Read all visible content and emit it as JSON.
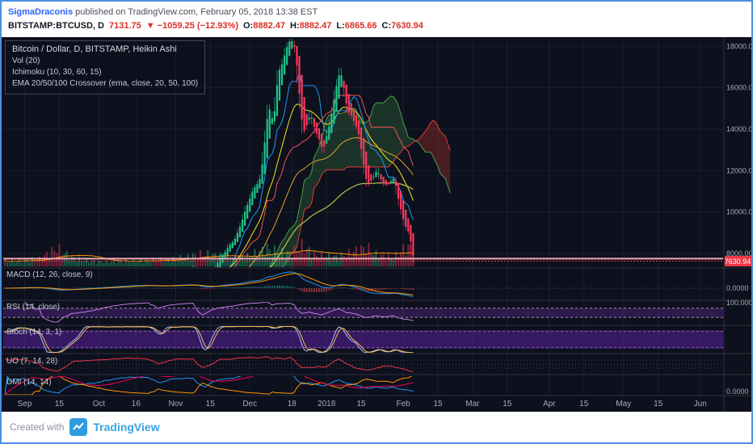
{
  "header": {
    "author": "SigmaDraconis",
    "published": " published on TradingView.com, February 05, 2018 13:38 EST",
    "symbol": "BITSTAMP:BTCUSD, D",
    "price": "7131.75",
    "change": "▼ −1059.25 (−12.93%)",
    "o_label": "O:",
    "o": "8882.47",
    "h_label": "H:",
    "h": "8882.47",
    "l_label": "L:",
    "l": "6865.66",
    "c_label": "C:",
    "c": "7630.94"
  },
  "legend": {
    "title": "Bitcoin / Dollar, D, BITSTAMP, Heikin Ashi",
    "vol": "Vol (20)",
    "ichimoku": "Ichimoku (10, 30, 60, 15)",
    "ema": "EMA 20/50/100 Crossover (ema, close, 20, 50, 100)"
  },
  "panes": {
    "macd": "MACD (12, 26, close, 9)",
    "rsi": "RSI (14, close)",
    "stoch": "Stoch (14, 3, 1)",
    "uo": "UO (7, 14, 28)",
    "dmi": "DMI (14, 14)"
  },
  "axis": {
    "price_labels": [
      {
        "price": 18000,
        "text": "18000.00"
      },
      {
        "price": 16000,
        "text": "16000.00"
      },
      {
        "price": 14000,
        "text": "14000.00"
      },
      {
        "price": 12000,
        "text": "12000.00"
      },
      {
        "price": 10000,
        "text": "10000.00"
      },
      {
        "price": 8000,
        "text": "8000.00"
      }
    ],
    "last_price_badge": "7630.94",
    "macd_zero_label": "0.0000",
    "rsi_top_label": "100.0000",
    "dmi_bottom_label": "0.0000",
    "time_labels": [
      [
        8,
        "Sep"
      ],
      [
        22,
        "15"
      ],
      [
        38,
        "Oct"
      ],
      [
        53,
        "16"
      ],
      [
        69,
        "Nov"
      ],
      [
        83,
        "15"
      ],
      [
        99,
        "Dec"
      ],
      [
        116,
        "18"
      ],
      [
        130,
        "2018"
      ],
      [
        144,
        "15"
      ],
      [
        161,
        "Feb"
      ],
      [
        175,
        "15"
      ],
      [
        189,
        "Mar"
      ],
      [
        203,
        "15"
      ],
      [
        220,
        "Apr"
      ],
      [
        234,
        "15"
      ],
      [
        250,
        "May"
      ],
      [
        264,
        "15"
      ],
      [
        281,
        "Jun"
      ]
    ]
  },
  "footer": {
    "created_with": "Created with",
    "brand": "TradingView"
  },
  "chart_data": {
    "type": "candlestick",
    "style": "Heikin Ashi",
    "symbol": "BITSTAMP:BTCUSD",
    "interval": "D",
    "visible_price_range": [
      7340,
      18390
    ],
    "x_range": [
      "2017-08-24",
      "2018-06-01"
    ],
    "grid": true,
    "indicators": [
      "Vol (20)",
      "Ichimoku (10, 30, 60, 15)",
      "EMA 20/50/100 Crossover",
      "MACD (12,26,close,9)",
      "RSI (14,close)",
      "Stoch (14,3,1)",
      "UO (7,14,28)",
      "DMI (14,14)"
    ],
    "close_anchors": [
      [
        0,
        4350
      ],
      [
        8,
        4750
      ],
      [
        14,
        4600
      ],
      [
        21,
        3200
      ],
      [
        27,
        3900
      ],
      [
        38,
        4350
      ],
      [
        49,
        5400
      ],
      [
        58,
        6050
      ],
      [
        62,
        5750
      ],
      [
        69,
        6750
      ],
      [
        76,
        7400
      ],
      [
        80,
        5900
      ],
      [
        86,
        7750
      ],
      [
        93,
        8750
      ],
      [
        99,
        10900
      ],
      [
        103,
        11700
      ],
      [
        106,
        15000
      ],
      [
        108,
        14300
      ],
      [
        110,
        16700
      ],
      [
        115,
        18500
      ],
      [
        117,
        17700
      ],
      [
        120,
        13700
      ],
      [
        123,
        14700
      ],
      [
        128,
        13000
      ],
      [
        130,
        13800
      ],
      [
        135,
        16900
      ],
      [
        138,
        15000
      ],
      [
        142,
        14100
      ],
      [
        146,
        11200
      ],
      [
        150,
        12000
      ],
      [
        153,
        11300
      ],
      [
        157,
        11600
      ],
      [
        159,
        10300
      ],
      [
        161,
        9400
      ],
      [
        163,
        8900
      ],
      [
        165,
        7630
      ]
    ],
    "volume_anchors": [
      [
        0,
        0.22
      ],
      [
        14,
        0.35
      ],
      [
        21,
        0.85
      ],
      [
        27,
        0.4
      ],
      [
        38,
        0.22
      ],
      [
        55,
        0.28
      ],
      [
        69,
        0.35
      ],
      [
        80,
        0.6
      ],
      [
        93,
        0.4
      ],
      [
        99,
        0.5
      ],
      [
        106,
        0.85
      ],
      [
        110,
        0.7
      ],
      [
        115,
        0.6
      ],
      [
        120,
        0.95
      ],
      [
        126,
        0.5
      ],
      [
        135,
        0.45
      ],
      [
        146,
        0.9
      ],
      [
        150,
        0.55
      ],
      [
        157,
        0.4
      ],
      [
        161,
        0.8
      ],
      [
        165,
        0.95
      ]
    ],
    "levels": {
      "horizontal_line_price": 7750,
      "last_price": 7630.94
    }
  },
  "colors": {
    "background": "#0d101d",
    "grid": "rgba(255,255,255,0.06)",
    "up": "#1fc48c",
    "down": "#f7395f",
    "vol_up": "rgba(38,194,129,0.45)",
    "vol_down": "rgba(247,57,95,0.45)",
    "volume_ma": "#ff9800",
    "ema20": "#f8e71c",
    "ema50": "#e0a32e",
    "ema100": "#b7c24a",
    "tenkan": "#2196f3",
    "kijun": "#ef5350",
    "spanA": "rgba(76,175,80,0.9)",
    "spanB": "rgba(244,67,54,0.9)",
    "cloud_up": "rgba(76,175,80,0.22)",
    "cloud_down": "rgba(244,67,54,0.26)",
    "macd": "#2196f3",
    "signal": "#ff9800",
    "hist_up": "rgba(38,166,154,0.5)",
    "hist_down": "rgba(239,83,80,0.5)",
    "rsi": "#c37ae6",
    "rsi_band": "rgba(126,50,193,0.30)",
    "stoch_k": "#9fc3ff",
    "stoch_d": "#ffb74d",
    "stoch_band": "rgba(104,38,183,0.45)",
    "uo": "#f23645",
    "adx": "#f50057",
    "plus_di": "#2196f3",
    "minus_di": "#ff9800",
    "last_price": "#f23645",
    "hline": "#f7a8b8",
    "axis_text": "#a6abb8",
    "separator": "rgba(255,255,255,0.14)"
  }
}
